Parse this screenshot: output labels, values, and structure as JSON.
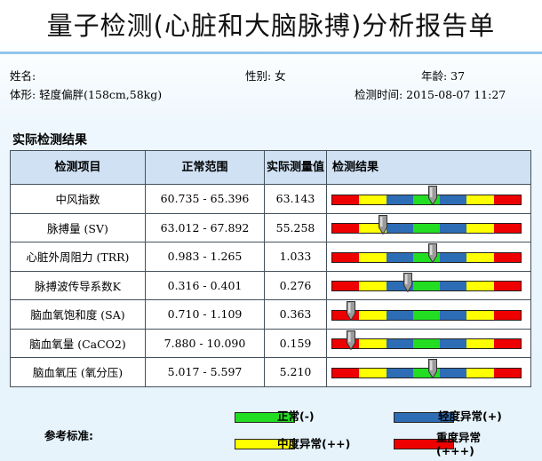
{
  "title": "量子检测(心脏和大脑脉搏)分析报告单",
  "patient": {
    "name_label": "姓名:",
    "name_value": "",
    "gender": "性别: 女",
    "age": "年龄: 37",
    "body_type": "体形: 轻度偏胖(158cm,58kg)",
    "test_time": "检测时间: 2015-08-07 11:27"
  },
  "section_title": "实际检测结果",
  "table": {
    "headers": [
      "检测项目",
      "正常范围",
      "实际测量值",
      "检测结果"
    ],
    "rows": [
      {
        "item": "中风指数",
        "range": "60.735 - 65.396",
        "value": "63.143",
        "marker": 0.535
      },
      {
        "item": "脉搏量 (SV)",
        "range": "63.012 - 67.892",
        "value": "55.258",
        "marker": 0.27
      },
      {
        "item": "心脏外周阻力 (TRR)",
        "range": "0.983 - 1.265",
        "value": "1.033",
        "marker": 0.535
      },
      {
        "item": "脉搏波传导系数K",
        "range": "0.316 - 0.401",
        "value": "0.276",
        "marker": 0.4
      },
      {
        "item": "脑血氧饱和度 (SA)",
        "range": "0.710 - 1.109",
        "value": "0.363",
        "marker": 0.1
      },
      {
        "item": "脑血氧量 (CaCO2)",
        "range": "7.880 - 10.090",
        "value": "0.159",
        "marker": 0.1
      },
      {
        "item": "脑血氧压 (氧分压)",
        "range": "5.017 - 5.597",
        "value": "5.210",
        "marker": 0.535
      }
    ]
  },
  "bar_colors": [
    "#ee0000",
    "#ffff00",
    "#2d6db5",
    "#22dd22",
    "#2d6db5",
    "#ffff00",
    "#ee0000"
  ],
  "legend": {
    "title": "参考标准:",
    "normal": {
      "label": "正常(-)",
      "color": "#22dd22"
    },
    "mild": {
      "label": "轻度异常(+)",
      "color": "#2d6db5"
    },
    "moderate": {
      "label": "中度异常(++)",
      "color": "#ffff00"
    },
    "severe": {
      "label": "重度异常(+++)",
      "color": "#ee0000"
    }
  }
}
